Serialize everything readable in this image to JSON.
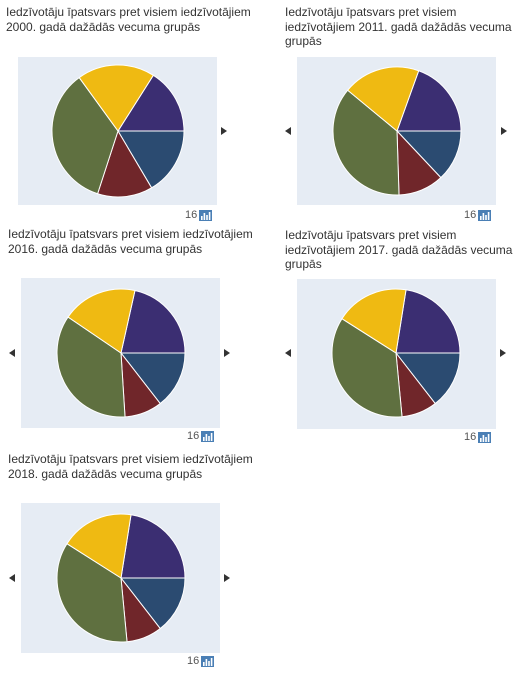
{
  "colors": {
    "panel_bg": "#e6ecf4",
    "slices": [
      "#3b2e72",
      "#2b4b71",
      "#70262a",
      "#5f7040",
      "#efba12"
    ]
  },
  "icons": {
    "prev": "triangle-left-icon",
    "next": "triangle-right-icon",
    "chart": "bar-chart-icon"
  },
  "chart_data": [
    {
      "type": "pie",
      "title": "Iedzīvotāju īpatsvars pret visiem iedzīvotājiem 2000. gadā dažādās vecuma grupās",
      "values": [
        16.0,
        16.5,
        13.5,
        35.0,
        19.0
      ],
      "footer_number": "16",
      "has_prev": false,
      "has_next": true
    },
    {
      "type": "pie",
      "title": "Iedzīvotāju īpatsvars pret visiem iedzīvotājiem 2011. gadā dažādās vecuma grupās",
      "values": [
        19.5,
        13.0,
        11.5,
        36.5,
        19.5
      ],
      "footer_number": "16",
      "has_prev": true,
      "has_next": true
    },
    {
      "type": "pie",
      "title": "Iedzīvotāju īpatsvars pret visiem iedzīvotājiem 2016. gadā dažādās vecuma grupās",
      "values": [
        21.5,
        14.5,
        9.5,
        35.5,
        19.0
      ],
      "footer_number": "16",
      "has_prev": true,
      "has_next": true
    },
    {
      "type": "pie",
      "title": "Iedzīvotāju īpatsvars pret visiem iedzīvotājiem 2017. gadā dažādās vecuma grupās",
      "values": [
        22.5,
        14.5,
        9.0,
        35.5,
        18.5
      ],
      "footer_number": "16",
      "has_prev": true,
      "has_next": true
    },
    {
      "type": "pie",
      "title": "Iedzīvotāju īpatsvars pret visiem iedzīvotājiem 2018. gadā dažādās vecuma grupās",
      "values": [
        22.5,
        14.5,
        9.0,
        35.5,
        18.5
      ],
      "footer_number": "16",
      "has_prev": true,
      "has_next": true
    }
  ]
}
